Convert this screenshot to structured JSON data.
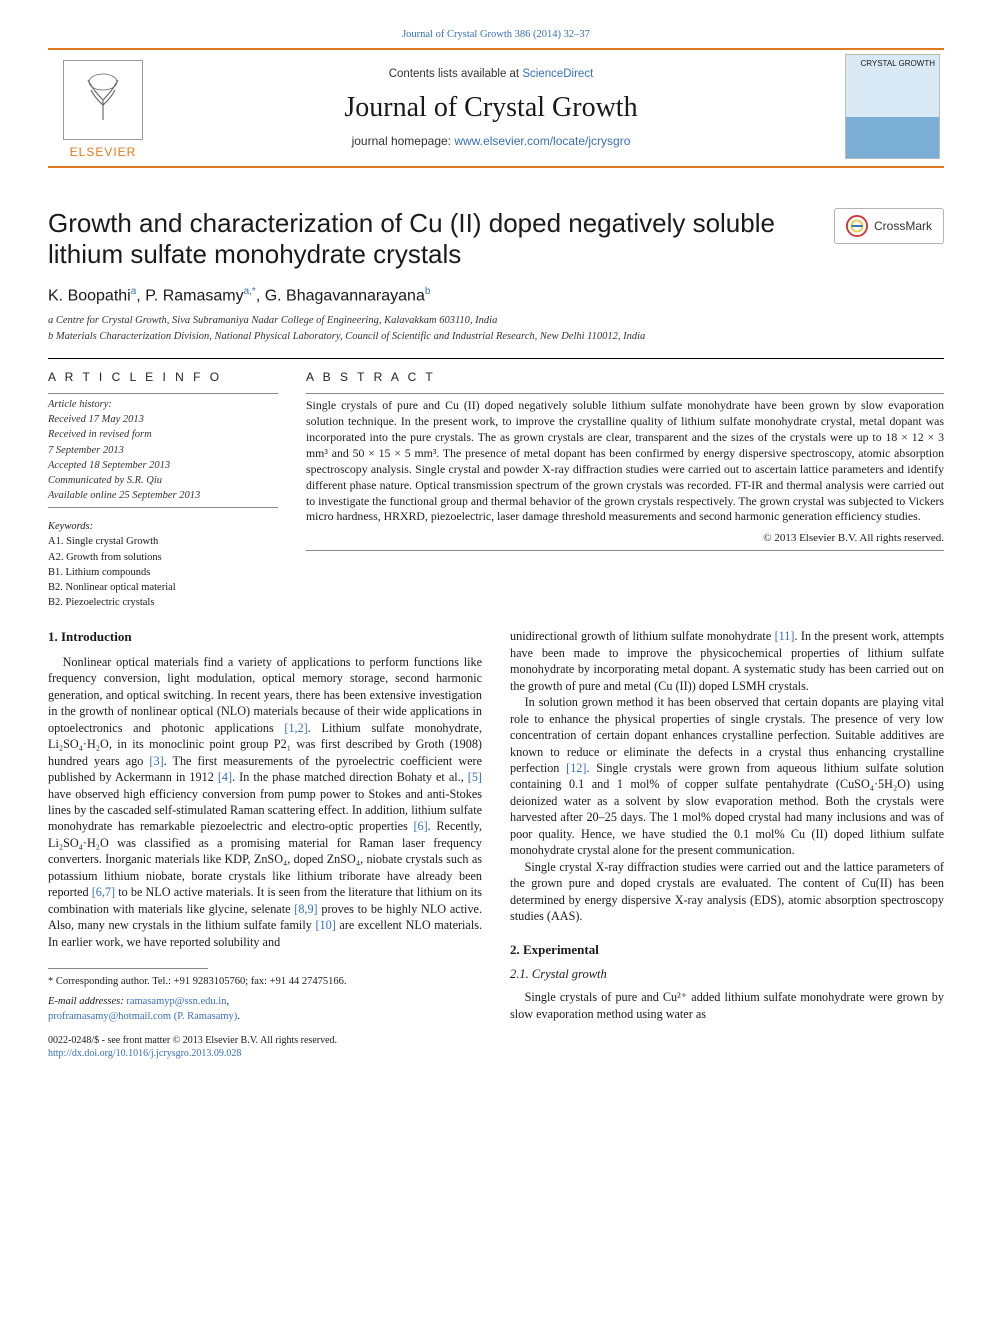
{
  "journal": {
    "citation": "Journal of Crystal Growth 386 (2014) 32–37",
    "contents_prefix": "Contents lists available at ",
    "contents_link": "ScienceDirect",
    "title": "Journal of Crystal Growth",
    "homepage_prefix": "journal homepage: ",
    "homepage_link": "www.elsevier.com/locate/jcrysgro",
    "publisher_word": "ELSEVIER",
    "cover_label": "CRYSTAL\nGROWTH",
    "colors": {
      "accent": "#e37a1f",
      "link": "#3a6fb7",
      "text": "#1a1a1a"
    }
  },
  "crossmark": "CrossMark",
  "article": {
    "title": "Growth and characterization of Cu (II) doped negatively soluble lithium sulfate monohydrate crystals",
    "authors_html": "K. Boopathi a, P. Ramasamy a,*, G. Bhagavannarayana b",
    "authors": [
      {
        "name": "K. Boopathi",
        "sup": "a"
      },
      {
        "name": "P. Ramasamy",
        "sup": "a,*"
      },
      {
        "name": "G. Bhagavannarayana",
        "sup": "b"
      }
    ],
    "affiliations": [
      "a Centre for Crystal Growth, Siva Subramaniya Nadar College of Engineering, Kalavakkam 603110, India",
      "b Materials Characterization Division, National Physical Laboratory, Council of Scientific and Industrial Research, New Delhi 110012, India"
    ]
  },
  "info": {
    "heading": "A R T I C L E   I N F O",
    "history_label": "Article history:",
    "history": [
      "Received 17 May 2013",
      "Received in revised form",
      "7 September 2013",
      "Accepted 18 September 2013",
      "Communicated by S.R. Qiu",
      "Available online 25 September 2013"
    ],
    "keywords_label": "Keywords:",
    "keywords": [
      "A1. Single crystal Growth",
      "A2. Growth from solutions",
      "B1. Lithium compounds",
      "B2. Nonlinear optical material",
      "B2. Piezoelectric crystals"
    ]
  },
  "abstract": {
    "heading": "A B S T R A C T",
    "text": "Single crystals of pure and Cu (II) doped negatively soluble lithium sulfate monohydrate have been grown by slow evaporation solution technique. In the present work, to improve the crystalline quality of lithium sulfate monohydrate crystal, metal dopant was incorporated into the pure crystals. The as grown crystals are clear, transparent and the sizes of the crystals were up to 18 × 12 × 3 mm³ and 50 × 15 × 5 mm³. The presence of metal dopant has been confirmed by energy dispersive spectroscopy, atomic absorption spectroscopy analysis. Single crystal and powder X-ray diffraction studies were carried out to ascertain lattice parameters and identify different phase nature. Optical transmission spectrum of the grown crystals was recorded. FT-IR and thermal analysis were carried out to investigate the functional group and thermal behavior of the grown crystals respectively. The grown crystal was subjected to Vickers micro hardness, HRXRD, piezoelectric, laser damage threshold measurements and second harmonic generation efficiency studies.",
    "copyright": "© 2013 Elsevier B.V. All rights reserved."
  },
  "sections": {
    "intro_h": "1.  Introduction",
    "intro_p1": "Nonlinear optical materials find a variety of applications to perform functions like frequency conversion, light modulation, optical memory storage, second harmonic generation, and optical switching. In recent years, there has been extensive investigation in the growth of nonlinear optical (NLO) materials because of their wide applications in optoelectronics and photonic applications [1,2]. Lithium sulfate monohydrate, Li₂SO₄·H₂O, in its monoclinic point group P2₁ was first described by Groth (1908) hundred years ago [3]. The first measurements of the pyroelectric coefficient were published by Ackermann in 1912 [4]. In the phase matched direction Bohaty et al., [5] have observed high efficiency conversion from pump power to Stokes and anti-Stokes lines by the cascaded self-stimulated Raman scattering effect. In addition, lithium sulfate monohydrate has remarkable piezoelectric and electro-optic properties [6]. Recently, Li₂SO₄·H₂O was classified as a promising material for Raman laser frequency converters. Inorganic materials like KDP, ZnSO₄, doped ZnSO₄, niobate crystals such as potassium lithium niobate, borate crystals like lithium triborate have already been reported [6,7] to be NLO active materials. It is seen from the literature that lithium on its combination with materials like glycine, selenate [8,9] proves to be highly NLO active. Also, many new crystals in the lithium sulfate family [10] are excellent NLO materials. In earlier work, we have reported solubility and",
    "right_p1": "unidirectional growth of lithium sulfate monohydrate [11]. In the present work, attempts have been made to improve the physicochemical properties of lithium sulfate monohydrate by incorporating metal dopant. A systematic study has been carried out on the growth of pure and metal (Cu (II)) doped LSMH crystals.",
    "right_p2": "In solution grown method it has been observed that certain dopants are playing vital role to enhance the physical properties of single crystals. The presence of very low concentration of certain dopant enhances crystalline perfection. Suitable additives are known to reduce or eliminate the defects in a crystal thus enhancing crystalline perfection [12]. Single crystals were grown from aqueous lithium sulfate solution containing 0.1 and 1 mol% of copper sulfate pentahydrate (CuSO₄·5H₂O) using deionized water as a solvent by slow evaporation method. Both the crystals were harvested after 20–25 days. The 1 mol% doped crystal had many inclusions and was of poor quality. Hence, we have studied the 0.1 mol% Cu (II) doped lithium sulfate monohydrate crystal alone for the present communication.",
    "right_p3": "Single crystal X-ray diffraction studies were carried out and the lattice parameters of the grown pure and doped crystals are evaluated. The content of Cu(II) has been determined by energy dispersive X-ray analysis (EDS), atomic absorption spectroscopy studies (AAS).",
    "exp_h": "2.  Experimental",
    "exp_sub_h": "2.1.  Crystal growth",
    "exp_p1": "Single crystals of pure and Cu²⁺ added lithium sulfate monohydrate were grown by slow evaporation method using water as"
  },
  "footer": {
    "corr": "* Corresponding author. Tel.: +91 9283105760; fax: +91 44 27475166.",
    "email_label": "E-mail addresses: ",
    "email1": "ramasamyp@ssn.edu.in",
    "email_sep": ", ",
    "email2": "proframasamy@hotmail.com (P. Ramasamy)",
    "email2_suffix": ".",
    "issn": "0022-0248/$ - see front matter © 2013 Elsevier B.V. All rights reserved.",
    "doi_link": "http://dx.doi.org/10.1016/j.jcrysgro.2013.09.028"
  }
}
